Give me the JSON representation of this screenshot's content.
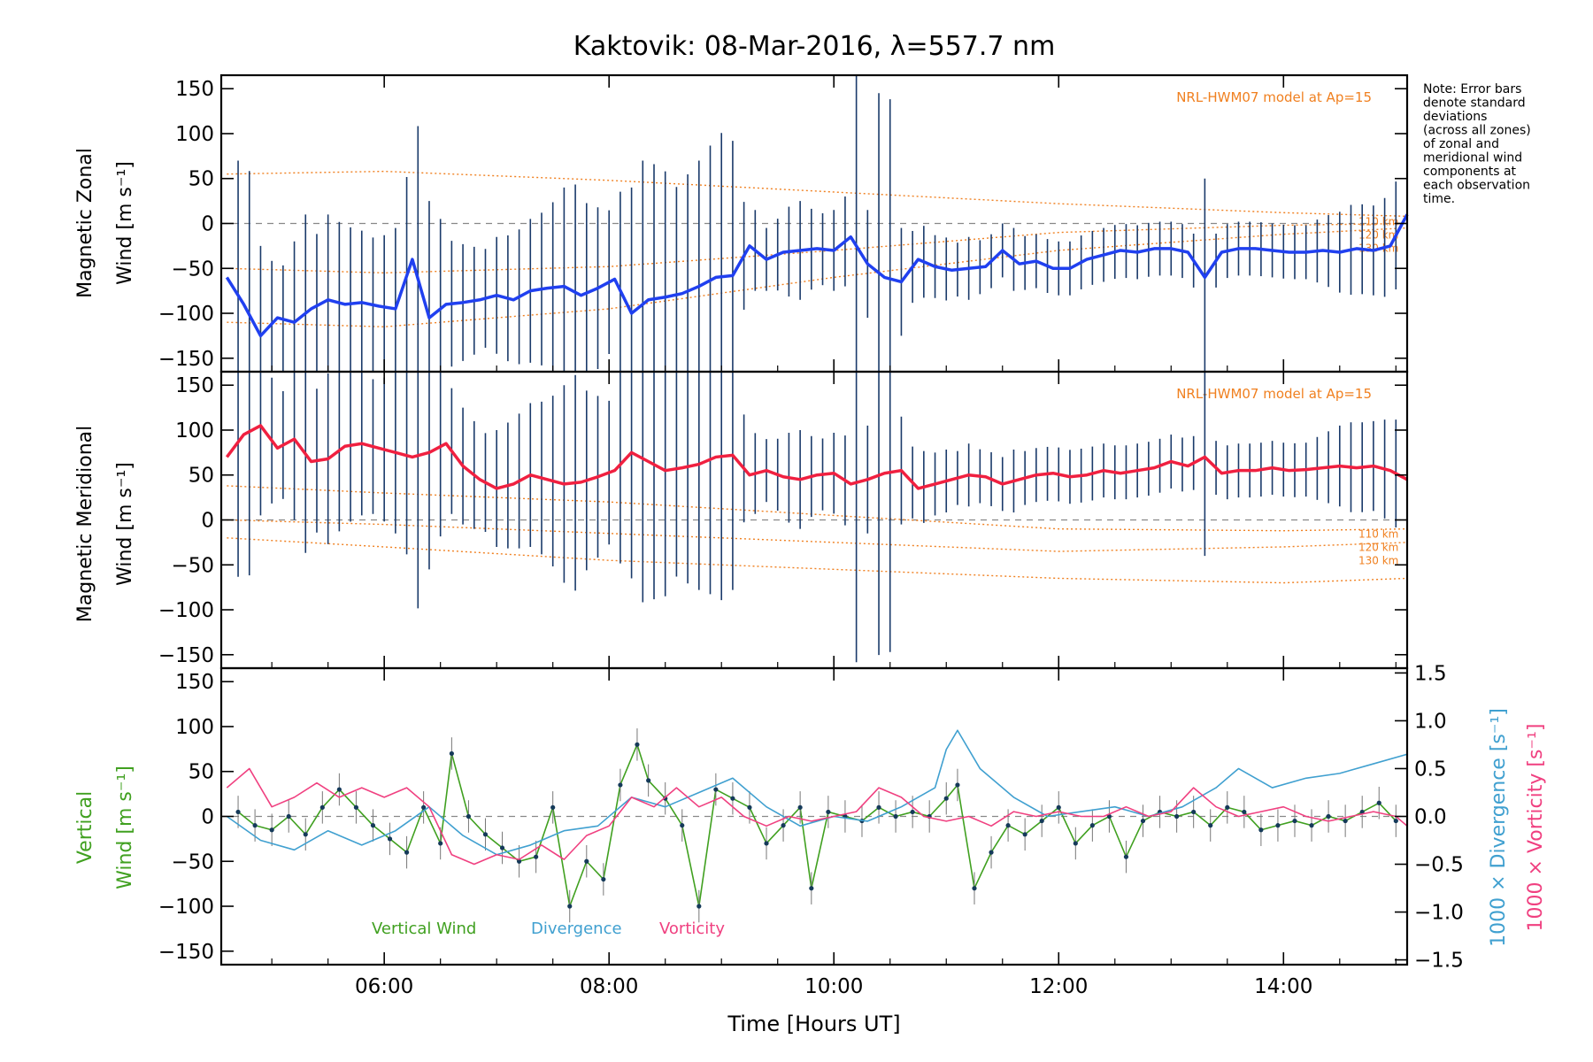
{
  "title": "Kaktovik: 08-Mar-2016, λ=557.7 nm",
  "note": "Note: Error bars denote standard deviations (across all zones) of zonal and meridional wind components at each observation time.",
  "note_lines": [
    "Note: Error bars",
    "denote standard",
    "deviations",
    "(across all zones)",
    "of zonal and",
    "meridional wind",
    "components at",
    "each observation",
    "time."
  ],
  "colors": {
    "zonal": "#2040f0",
    "meridional": "#f02040",
    "vertical": "#40a020",
    "divergence": "#40a0d0",
    "vorticity": "#f04080",
    "model": "#f08020",
    "errorbar": "#1a3a6a"
  },
  "chart_data": [
    {
      "type": "line",
      "panel": "zonal",
      "ylabel_line1": "Magnetic Zonal",
      "ylabel_line2": "Wind [m s⁻¹]",
      "ylim": [
        -165,
        165
      ],
      "yticks": [
        -150,
        -100,
        -50,
        0,
        50,
        100,
        150
      ],
      "model_label": "NRL-HWM07 model at Ap=15",
      "model_alt_labels": [
        "110 km",
        "120 km",
        "130 km"
      ],
      "model_curves": [
        {
          "name": "110 km",
          "x": [
            4.6,
            6,
            8,
            10,
            12,
            14,
            15.1
          ],
          "y": [
            55,
            58,
            48,
            35,
            22,
            12,
            8
          ]
        },
        {
          "name": "120 km",
          "x": [
            4.6,
            6,
            8,
            10,
            12,
            14,
            15.1
          ],
          "y": [
            -50,
            -55,
            -48,
            -30,
            -10,
            -2,
            0
          ]
        },
        {
          "name": "130 km",
          "x": [
            4.6,
            6,
            8,
            10,
            12,
            14,
            15.1
          ],
          "y": [
            -110,
            -115,
            -95,
            -60,
            -30,
            -12,
            -5
          ]
        }
      ],
      "series": [
        {
          "name": "Zonal Wind",
          "x": [
            4.6,
            4.75,
            4.9,
            5.05,
            5.2,
            5.35,
            5.5,
            5.65,
            5.8,
            5.95,
            6.1,
            6.25,
            6.4,
            6.55,
            6.7,
            6.85,
            7.0,
            7.15,
            7.3,
            7.45,
            7.6,
            7.75,
            7.9,
            8.05,
            8.2,
            8.35,
            8.5,
            8.65,
            8.8,
            8.95,
            9.1,
            9.25,
            9.4,
            9.55,
            9.7,
            9.85,
            10.0,
            10.15,
            10.3,
            10.45,
            10.6,
            10.75,
            10.9,
            11.05,
            11.2,
            11.35,
            11.5,
            11.65,
            11.8,
            11.95,
            12.1,
            12.25,
            12.4,
            12.55,
            12.7,
            12.85,
            13.0,
            13.15,
            13.3,
            13.45,
            13.6,
            13.75,
            13.9,
            14.05,
            14.2,
            14.35,
            14.5,
            14.65,
            14.8,
            14.95,
            15.1
          ],
          "y": [
            -60,
            -90,
            -125,
            -105,
            -110,
            -95,
            -85,
            -90,
            -88,
            -92,
            -95,
            -40,
            -105,
            -90,
            -88,
            -85,
            -80,
            -85,
            -75,
            -72,
            -70,
            -80,
            -72,
            -62,
            -100,
            -85,
            -82,
            -78,
            -70,
            -60,
            -58,
            -25,
            -40,
            -32,
            -30,
            -28,
            -30,
            -15,
            -45,
            -60,
            -65,
            -40,
            -48,
            -52,
            -50,
            -48,
            -30,
            -45,
            -42,
            -50,
            -50,
            -40,
            -35,
            -30,
            -32,
            -28,
            -28,
            -32,
            -60,
            -32,
            -28,
            -28,
            -30,
            -32,
            -32,
            -30,
            -32,
            -28,
            -30,
            -25,
            10
          ]
        },
        {
          "name": "Error bars",
          "x": [
            4.7,
            4.8,
            4.9,
            5.0,
            5.1,
            5.2,
            5.3,
            5.4,
            5.5,
            5.6,
            5.7,
            5.8,
            5.9,
            6.0,
            6.1,
            6.2,
            6.3,
            6.4,
            6.5,
            6.6,
            6.7,
            6.8,
            6.9,
            7.0,
            7.1,
            7.2,
            7.3,
            7.4,
            7.5,
            7.6,
            7.7,
            7.8,
            7.9,
            8.0,
            8.1,
            8.2,
            8.3,
            8.4,
            8.5,
            8.6,
            8.7,
            8.8,
            8.9,
            9.0,
            9.1,
            9.2,
            9.3,
            9.4,
            9.5,
            9.6,
            9.7,
            9.8,
            9.9,
            10.0,
            10.1,
            10.2,
            10.3,
            10.4,
            10.5,
            10.6,
            10.7,
            10.8,
            10.9,
            11.0,
            11.1,
            11.2,
            11.3,
            11.4,
            11.5,
            11.6,
            11.7,
            11.8,
            11.9,
            12.0,
            12.1,
            12.2,
            12.3,
            12.4,
            12.5,
            12.6,
            12.7,
            12.8,
            12.9,
            13.0,
            13.1,
            13.2,
            13.3,
            13.4,
            13.5,
            13.6,
            13.7,
            13.8,
            13.9,
            14.0,
            14.1,
            14.2,
            14.3,
            14.4,
            14.5,
            14.6,
            14.7,
            14.8,
            14.9,
            15.0
          ],
          "err": [
            150,
            160,
            100,
            70,
            60,
            90,
            110,
            80,
            95,
            90,
            85,
            80,
            75,
            80,
            90,
            110,
            170,
            130,
            100,
            70,
            65,
            60,
            55,
            65,
            70,
            75,
            80,
            85,
            95,
            110,
            120,
            100,
            90,
            80,
            110,
            140,
            160,
            150,
            140,
            120,
            130,
            140,
            150,
            160,
            150,
            60,
            45,
            35,
            40,
            50,
            55,
            45,
            40,
            45,
            50,
            200,
            60,
            200,
            200,
            60,
            40,
            40,
            35,
            35,
            30,
            35,
            30,
            30,
            30,
            35,
            30,
            30,
            30,
            30,
            30,
            30,
            30,
            30,
            30,
            30,
            30,
            30,
            30,
            30,
            30,
            30,
            110,
            30,
            30,
            30,
            30,
            30,
            30,
            30,
            30,
            30,
            35,
            40,
            45,
            50,
            50,
            50,
            55,
            60
          ]
        }
      ]
    },
    {
      "type": "line",
      "panel": "meridional",
      "ylabel_line1": "Magnetic Meridional",
      "ylabel_line2": "Wind [m s⁻¹]",
      "ylim": [
        -165,
        165
      ],
      "yticks": [
        -150,
        -100,
        -50,
        0,
        50,
        100,
        150
      ],
      "model_label": "NRL-HWM07 model at Ap=15",
      "model_alt_labels": [
        "110 km",
        "120 km",
        "130 km"
      ],
      "model_curves": [
        {
          "name": "110 km",
          "x": [
            4.6,
            6,
            8,
            10,
            12,
            14,
            15.1
          ],
          "y": [
            38,
            30,
            20,
            5,
            -10,
            -12,
            -10
          ]
        },
        {
          "name": "120 km",
          "x": [
            4.6,
            6,
            8,
            10,
            12,
            14,
            15.1
          ],
          "y": [
            0,
            -5,
            -15,
            -25,
            -35,
            -30,
            -25
          ]
        },
        {
          "name": "130 km",
          "x": [
            4.6,
            6,
            8,
            10,
            12,
            14,
            15.1
          ],
          "y": [
            -20,
            -30,
            -45,
            -55,
            -65,
            -70,
            -65
          ]
        }
      ],
      "series": [
        {
          "name": "Meridional Wind",
          "x": [
            4.6,
            4.75,
            4.9,
            5.05,
            5.2,
            5.35,
            5.5,
            5.65,
            5.8,
            5.95,
            6.1,
            6.25,
            6.4,
            6.55,
            6.7,
            6.85,
            7.0,
            7.15,
            7.3,
            7.45,
            7.6,
            7.75,
            7.9,
            8.05,
            8.2,
            8.35,
            8.5,
            8.65,
            8.8,
            8.95,
            9.1,
            9.25,
            9.4,
            9.55,
            9.7,
            9.85,
            10.0,
            10.15,
            10.3,
            10.45,
            10.6,
            10.75,
            10.9,
            11.05,
            11.2,
            11.35,
            11.5,
            11.65,
            11.8,
            11.95,
            12.1,
            12.25,
            12.4,
            12.55,
            12.7,
            12.85,
            13.0,
            13.15,
            13.3,
            13.45,
            13.6,
            13.75,
            13.9,
            14.05,
            14.2,
            14.35,
            14.5,
            14.65,
            14.8,
            14.95,
            15.1
          ],
          "y": [
            70,
            95,
            105,
            80,
            90,
            65,
            68,
            82,
            85,
            80,
            75,
            70,
            75,
            85,
            60,
            45,
            35,
            40,
            50,
            45,
            40,
            42,
            48,
            55,
            75,
            65,
            55,
            58,
            62,
            70,
            72,
            50,
            55,
            48,
            45,
            50,
            52,
            40,
            45,
            52,
            55,
            35,
            40,
            45,
            50,
            48,
            40,
            45,
            50,
            52,
            48,
            50,
            55,
            52,
            55,
            58,
            65,
            60,
            70,
            52,
            55,
            55,
            58,
            55,
            56,
            58,
            60,
            58,
            60,
            55,
            45
          ]
        }
      ]
    },
    {
      "type": "line",
      "panel": "vertical",
      "ylabel_line1": "Vertical",
      "ylabel_line2": "Wind [m s⁻¹]",
      "y2label_div": "1000 × Divergence [s⁻¹]",
      "y2label_vort": "1000 × Vorticity [s⁻¹]",
      "ylim": [
        -165,
        165
      ],
      "yticks": [
        -150,
        -100,
        -50,
        0,
        50,
        100,
        150
      ],
      "y2lim": [
        -1.55,
        1.55
      ],
      "y2ticks": [
        -1.5,
        -1.0,
        -0.5,
        0.0,
        0.5,
        1.0,
        1.5
      ],
      "y2ticklabels": [
        "−1.5",
        "−1.0",
        "−0.5",
        "0.0",
        "0.5",
        "1.0",
        "1.5"
      ],
      "legend": [
        "Vertical Wind",
        "Divergence",
        "Vorticity"
      ],
      "series": [
        {
          "name": "Vertical Wind",
          "x": [
            4.7,
            4.85,
            5.0,
            5.15,
            5.3,
            5.45,
            5.6,
            5.75,
            5.9,
            6.05,
            6.2,
            6.35,
            6.5,
            6.6,
            6.75,
            6.9,
            7.05,
            7.2,
            7.35,
            7.5,
            7.65,
            7.8,
            7.95,
            8.1,
            8.25,
            8.35,
            8.5,
            8.65,
            8.8,
            8.95,
            9.1,
            9.25,
            9.4,
            9.55,
            9.7,
            9.8,
            9.95,
            10.1,
            10.25,
            10.4,
            10.55,
            10.7,
            10.85,
            11.0,
            11.1,
            11.25,
            11.4,
            11.55,
            11.7,
            11.85,
            12.0,
            12.15,
            12.3,
            12.45,
            12.6,
            12.75,
            12.9,
            13.05,
            13.2,
            13.35,
            13.5,
            13.65,
            13.8,
            13.95,
            14.1,
            14.25,
            14.4,
            14.55,
            14.7,
            14.85,
            15.0
          ],
          "y": [
            5,
            -10,
            -15,
            0,
            -20,
            10,
            30,
            10,
            -10,
            -25,
            -40,
            10,
            -30,
            70,
            0,
            -20,
            -35,
            -50,
            -45,
            10,
            -100,
            -50,
            -70,
            35,
            80,
            40,
            20,
            -10,
            -100,
            30,
            20,
            10,
            -30,
            -10,
            10,
            -80,
            5,
            0,
            -5,
            10,
            0,
            5,
            0,
            20,
            35,
            -80,
            -40,
            -10,
            -20,
            -5,
            10,
            -30,
            -10,
            0,
            -45,
            -5,
            5,
            0,
            5,
            -10,
            10,
            5,
            -15,
            -10,
            -5,
            -10,
            0,
            -5,
            5,
            15,
            -5
          ]
        },
        {
          "name": "Divergence",
          "axis": "y2",
          "x": [
            4.6,
            4.9,
            5.2,
            5.5,
            5.8,
            6.1,
            6.4,
            6.7,
            7.0,
            7.3,
            7.6,
            7.9,
            8.2,
            8.5,
            8.8,
            9.1,
            9.4,
            9.7,
            10.0,
            10.3,
            10.6,
            10.9,
            11.0,
            11.1,
            11.3,
            11.6,
            11.9,
            12.2,
            12.5,
            12.8,
            13.1,
            13.4,
            13.6,
            13.9,
            14.2,
            14.5,
            14.8,
            15.1
          ],
          "y": [
            0.0,
            -0.25,
            -0.35,
            -0.15,
            -0.3,
            -0.15,
            0.1,
            -0.2,
            -0.4,
            -0.3,
            -0.15,
            -0.1,
            0.2,
            0.1,
            0.25,
            0.4,
            0.1,
            -0.1,
            0.0,
            -0.05,
            0.1,
            0.3,
            0.7,
            0.9,
            0.5,
            0.2,
            0.0,
            0.05,
            0.1,
            0.0,
            0.1,
            0.3,
            0.5,
            0.3,
            0.4,
            0.45,
            0.55,
            0.65
          ]
        },
        {
          "name": "Vorticity",
          "axis": "y2",
          "x": [
            4.6,
            4.8,
            5.0,
            5.2,
            5.4,
            5.6,
            5.8,
            6.0,
            6.2,
            6.4,
            6.6,
            6.8,
            7.0,
            7.2,
            7.4,
            7.6,
            7.8,
            8.0,
            8.2,
            8.4,
            8.6,
            8.8,
            9.0,
            9.2,
            9.4,
            9.6,
            9.8,
            10.0,
            10.2,
            10.4,
            10.6,
            10.8,
            11.0,
            11.2,
            11.4,
            11.6,
            11.8,
            12.0,
            12.2,
            12.4,
            12.6,
            12.8,
            13.0,
            13.2,
            13.4,
            13.6,
            13.8,
            14.0,
            14.2,
            14.4,
            14.6,
            14.8,
            15.0,
            15.1
          ],
          "y": [
            0.3,
            0.5,
            0.1,
            0.2,
            0.35,
            0.2,
            0.3,
            0.2,
            0.3,
            0.1,
            -0.4,
            -0.5,
            -0.4,
            -0.45,
            -0.3,
            -0.45,
            -0.2,
            -0.1,
            0.2,
            0.1,
            0.3,
            0.1,
            0.2,
            0.0,
            -0.1,
            0.0,
            -0.05,
            0.0,
            0.05,
            0.3,
            0.2,
            0.0,
            -0.05,
            0.0,
            -0.1,
            0.05,
            0.0,
            0.05,
            0.0,
            0.0,
            0.1,
            0.0,
            0.05,
            0.3,
            0.1,
            0.0,
            0.05,
            0.1,
            0.0,
            -0.05,
            0.0,
            0.05,
            0.0,
            -0.1
          ]
        }
      ]
    }
  ],
  "x_axis": {
    "xlabel": "Time [Hours UT]",
    "xlim": [
      4.55,
      15.1
    ],
    "xticks": [
      6,
      8,
      10,
      12,
      14
    ],
    "xticklabels": [
      "06:00",
      "08:00",
      "10:00",
      "12:00",
      "14:00"
    ]
  }
}
